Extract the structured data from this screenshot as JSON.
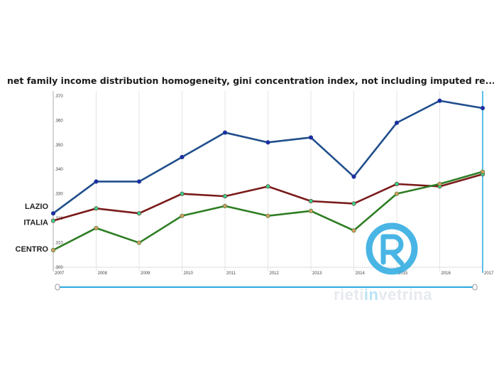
{
  "title": "net family income distribution homogeneity, gini concentration index, not including imputed re...",
  "watermark": {
    "prefix": "rieti",
    "middle": "in",
    "suffix": "vetrina",
    "logo_letter": "R"
  },
  "colors": {
    "lazio": "#1f4e8c",
    "italia": "#7a1a1a",
    "centro": "#2e7d23",
    "accent": "#29a9e1"
  },
  "chart_data": {
    "type": "line",
    "title": "net family income distribution homogeneity, gini concentration index, not including imputed re...",
    "x": [
      "2007",
      "2008",
      "2009",
      "2010",
      "2011",
      "2012",
      "2013",
      "2014",
      "2015",
      "2016",
      "2017"
    ],
    "y_ticks": [
      ".300",
      ".310",
      ".320",
      ".330",
      ".340",
      ".350",
      ".360",
      ".370"
    ],
    "ylim": [
      0.3,
      0.372
    ],
    "grid": "vertical",
    "series": [
      {
        "name": "LAZIO",
        "color": "#1f4e8c",
        "marker": "#1f2aa8",
        "values": [
          0.322,
          0.335,
          0.335,
          0.345,
          0.355,
          0.351,
          0.353,
          0.337,
          0.359,
          0.368,
          0.365
        ]
      },
      {
        "name": "ITALIA",
        "color": "#7a1a1a",
        "marker": "#35d08a",
        "values": [
          0.319,
          0.324,
          0.322,
          0.33,
          0.329,
          0.333,
          0.327,
          0.326,
          0.334,
          0.333,
          0.338
        ]
      },
      {
        "name": "CENTRO",
        "color": "#2e7d23",
        "marker": "#d19a66",
        "values": [
          0.307,
          0.316,
          0.31,
          0.321,
          0.325,
          0.321,
          0.323,
          0.315,
          0.33,
          0.334,
          0.339
        ]
      }
    ]
  }
}
